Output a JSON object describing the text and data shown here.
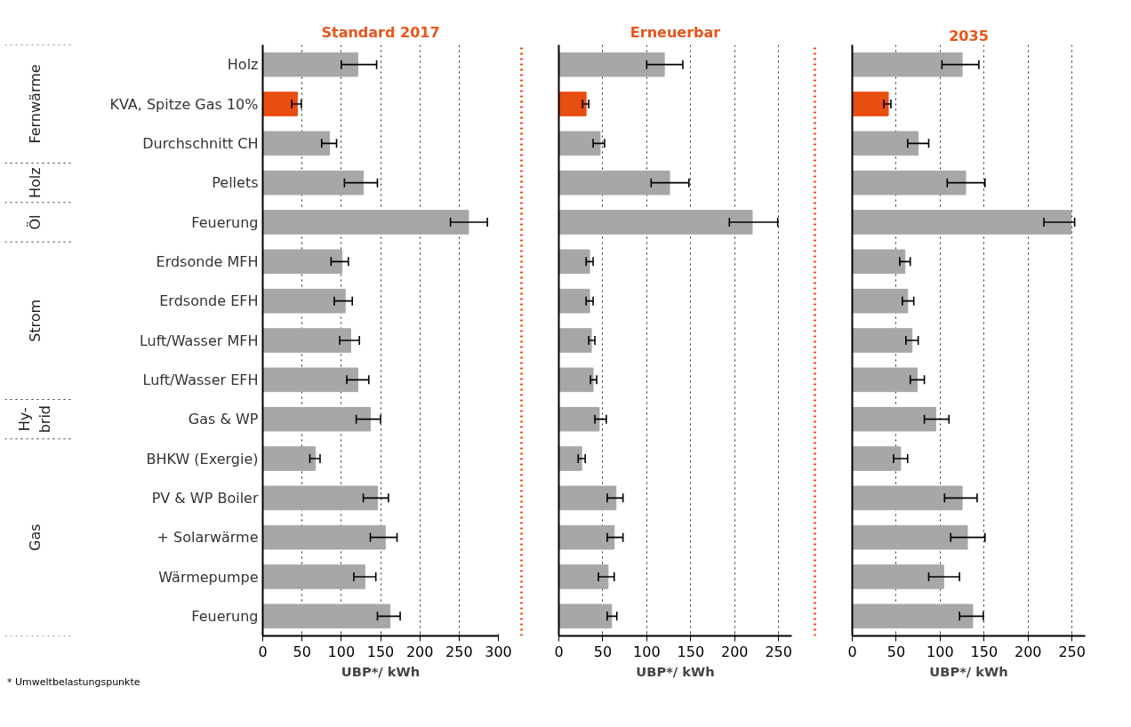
{
  "chart_data": [
    {
      "type": "bar",
      "orientation": "horizontal",
      "title": "Standard 2017",
      "xlabel": "UBP*/ kWh",
      "categories": [
        "Holz",
        "KVA, Spitze Gas 10%",
        "Durchschnitt CH",
        "Pellets",
        "Feuerung",
        "Erdsonde MFH",
        "Erdsonde EFH",
        "Luft/Wasser MFH",
        "Luft/Wasser EFH",
        "Gas & WP",
        "BHKW (Exergie)",
        "PV & WP Boiler",
        "+ Solarwärme",
        "Wärmepumpe",
        "Feuerung"
      ],
      "values": [
        121,
        44,
        85,
        128,
        262,
        101,
        105,
        112,
        121,
        137,
        67,
        146,
        156,
        130,
        162
      ],
      "colors": [
        "#a6a8a7",
        "#e84e0f",
        "#a6a8a7",
        "#a6a8a7",
        "#a6a8a7",
        "#a6a8a7",
        "#a6a8a7",
        "#a6a8a7",
        "#a6a8a7",
        "#a6a8a7",
        "#a6a8a7",
        "#a6a8a7",
        "#a6a8a7",
        "#a6a8a7",
        "#a6a8a7"
      ],
      "errors": [
        [
          100,
          145
        ],
        [
          37,
          49
        ],
        [
          75,
          94
        ],
        [
          104,
          146
        ],
        [
          239,
          286
        ],
        [
          87,
          109
        ],
        [
          91,
          114
        ],
        [
          98,
          123
        ],
        [
          107,
          135
        ],
        [
          119,
          150
        ],
        [
          60,
          73
        ],
        [
          128,
          160
        ],
        [
          137,
          171
        ],
        [
          116,
          144
        ],
        [
          146,
          175
        ]
      ],
      "xlim": [
        0,
        300
      ],
      "xticks": [
        0,
        50,
        100,
        150,
        200,
        250,
        300
      ],
      "grid": "x",
      "annotations": [
        "Fernwärme",
        "Holz",
        "Öl",
        "Strom",
        "Hy-\nbrid",
        "Gas",
        "* Umweltbelastungspunkte"
      ]
    },
    {
      "type": "bar",
      "orientation": "horizontal",
      "title": "Erneuerbar",
      "xlabel": "UBP*/ kWh",
      "values": [
        120,
        31,
        47,
        126,
        220,
        35,
        35,
        37,
        39,
        46,
        26,
        65,
        63,
        56,
        60
      ],
      "colors": [
        "#a6a8a7",
        "#e84e0f",
        "#a6a8a7",
        "#a6a8a7",
        "#a6a8a7",
        "#a6a8a7",
        "#a6a8a7",
        "#a6a8a7",
        "#a6a8a7",
        "#a6a8a7",
        "#a6a8a7",
        "#a6a8a7",
        "#a6a8a7",
        "#a6a8a7",
        "#a6a8a7"
      ],
      "errors": [
        [
          100,
          141
        ],
        [
          27,
          34
        ],
        [
          39,
          52
        ],
        [
          105,
          148
        ],
        [
          194,
          249
        ],
        [
          31,
          39
        ],
        [
          31,
          39
        ],
        [
          34,
          41
        ],
        [
          36,
          43
        ],
        [
          41,
          54
        ],
        [
          22,
          30
        ],
        [
          55,
          73
        ],
        [
          55,
          73
        ],
        [
          45,
          63
        ],
        [
          55,
          66
        ]
      ],
      "xlim": [
        0,
        265
      ],
      "xticks": [
        0,
        50,
        100,
        150,
        200,
        250
      ],
      "grid": "x",
      "tick_labels": "x"
    },
    {
      "type": "bar",
      "orientation": "horizontal",
      "title": "2035",
      "xlabel": "UBP*/ kWh",
      "values": [
        125,
        41,
        75,
        129,
        249,
        60,
        63,
        68,
        74,
        95,
        55,
        125,
        131,
        104,
        137
      ],
      "colors": [
        "#a6a8a7",
        "#e84e0f",
        "#a6a8a7",
        "#a6a8a7",
        "#a6a8a7",
        "#a6a8a7",
        "#a6a8a7",
        "#a6a8a7",
        "#a6a8a7",
        "#a6a8a7",
        "#a6a8a7",
        "#a6a8a7",
        "#a6a8a7",
        "#a6a8a7",
        "#a6a8a7"
      ],
      "errors": [
        [
          102,
          144
        ],
        [
          36,
          44
        ],
        [
          63,
          87
        ],
        [
          108,
          151
        ],
        [
          218,
          253
        ],
        [
          54,
          66
        ],
        [
          57,
          70
        ],
        [
          61,
          75
        ],
        [
          66,
          82
        ],
        [
          82,
          110
        ],
        [
          47,
          63
        ],
        [
          105,
          142
        ],
        [
          112,
          151
        ],
        [
          87,
          122
        ],
        [
          122,
          149
        ]
      ],
      "xlim": [
        0,
        265
      ],
      "xticks": [
        0,
        50,
        100,
        150,
        200,
        250
      ],
      "grid": "x",
      "tick_labels": "x"
    }
  ]
}
